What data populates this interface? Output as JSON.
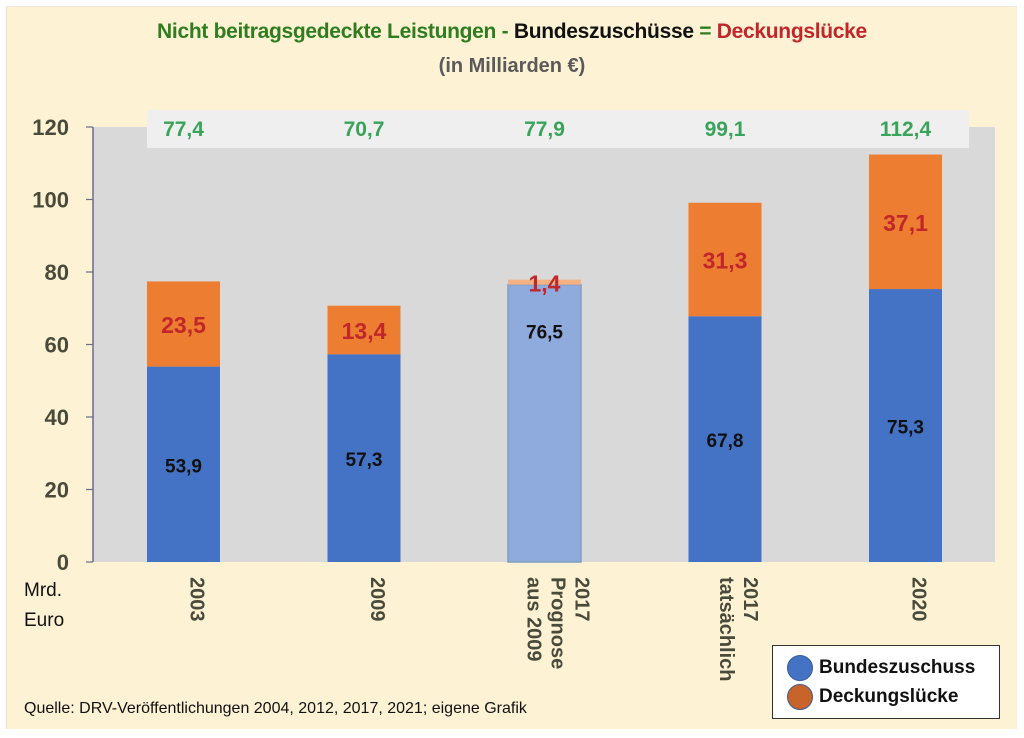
{
  "title": {
    "part1": "Nicht beitragsgedeckte Leistungen",
    "sep1": " - ",
    "part2": "Bundeszuschüsse",
    "sep2": " = ",
    "part3": "Deckungslücke",
    "subtitle": "(in Milliarden €)",
    "colors": {
      "part1": "#2e7d1e",
      "part2": "#111111",
      "part3": "#c0262a",
      "sep": "#2e7d1e"
    }
  },
  "unit_label": [
    "Mrd.",
    "Euro"
  ],
  "source": "Quelle: DRV-Veröffentlichungen 2004, 2012, 2017, 2021; eigene Grafik",
  "legend": [
    {
      "label": "Bundeszuschuss",
      "color": "#4472c4"
    },
    {
      "label": "Deckungslücke",
      "color": "#ed7d31"
    }
  ],
  "chart_data": {
    "type": "bar",
    "stacked": true,
    "title": "Nicht beitragsgedeckte Leistungen - Bundeszuschüsse = Deckungslücke",
    "subtitle": "(in Milliarden €)",
    "xlabel": "",
    "ylabel": "Mrd. Euro",
    "ylim": [
      0,
      120
    ],
    "yticks": [
      0,
      20,
      40,
      60,
      80,
      100,
      120
    ],
    "grid": false,
    "legend_position": "bottom-right",
    "categories": [
      [
        "2003"
      ],
      [
        "2009"
      ],
      [
        "2017",
        "Prognose",
        "aus 2009"
      ],
      [
        "2017",
        "tatsächlich"
      ],
      [
        "2020"
      ]
    ],
    "series": [
      {
        "name": "Bundeszuschuss",
        "color": "#4472c4",
        "values": [
          53.9,
          57.3,
          76.5,
          67.8,
          75.3
        ],
        "labels": [
          "53,9",
          "57,3",
          "76,5",
          "67,8",
          "75,3"
        ]
      },
      {
        "name": "Deckungslücke",
        "color": "#ed7d31",
        "values": [
          23.5,
          13.4,
          1.4,
          31.3,
          37.1
        ],
        "labels": [
          "23,5",
          "13,4",
          "1,4",
          "31,3",
          "37,1"
        ]
      }
    ],
    "totals": [
      77.4,
      70.7,
      77.9,
      99.1,
      112.4
    ],
    "total_labels": [
      "77,4",
      "70,7",
      "77,9",
      "99,1",
      "112,4"
    ],
    "highlighted_category_index": 2,
    "highlight_note": "Prognose bar drawn in lighter colors"
  }
}
